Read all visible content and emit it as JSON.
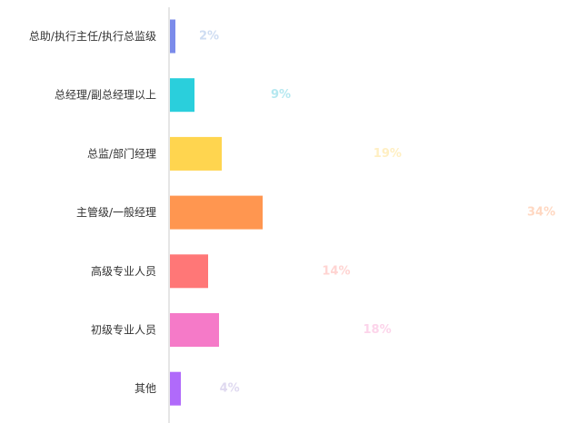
{
  "chart_data": {
    "type": "bar",
    "orientation": "horizontal",
    "categories": [
      "总助/执行主任/执行总监级",
      "总经理/副总经理以上",
      "总监/部门经理",
      "主管级/一般经理",
      "高级专业人员",
      "初级专业人员",
      "其他"
    ],
    "values": [
      2,
      9,
      19,
      34,
      14,
      18,
      4
    ],
    "value_labels": [
      "2%",
      "9%",
      "19%",
      "34%",
      "14%",
      "18%",
      "4%"
    ],
    "colors": [
      "#7B8BEA",
      "#2ACFDC",
      "#FFD54F",
      "#FF9650",
      "#FF7777",
      "#F57AC8",
      "#B06AFA"
    ],
    "label_colors": [
      "#CFDDF2",
      "#B5E8F0",
      "#FFEFC2",
      "#FFD8C2",
      "#FFD4D2",
      "#FCD4EA",
      "#DFD9F0"
    ],
    "xlim": [
      0,
      34
    ],
    "axis_color": "#cccccc",
    "grid": false,
    "legend": "none"
  }
}
